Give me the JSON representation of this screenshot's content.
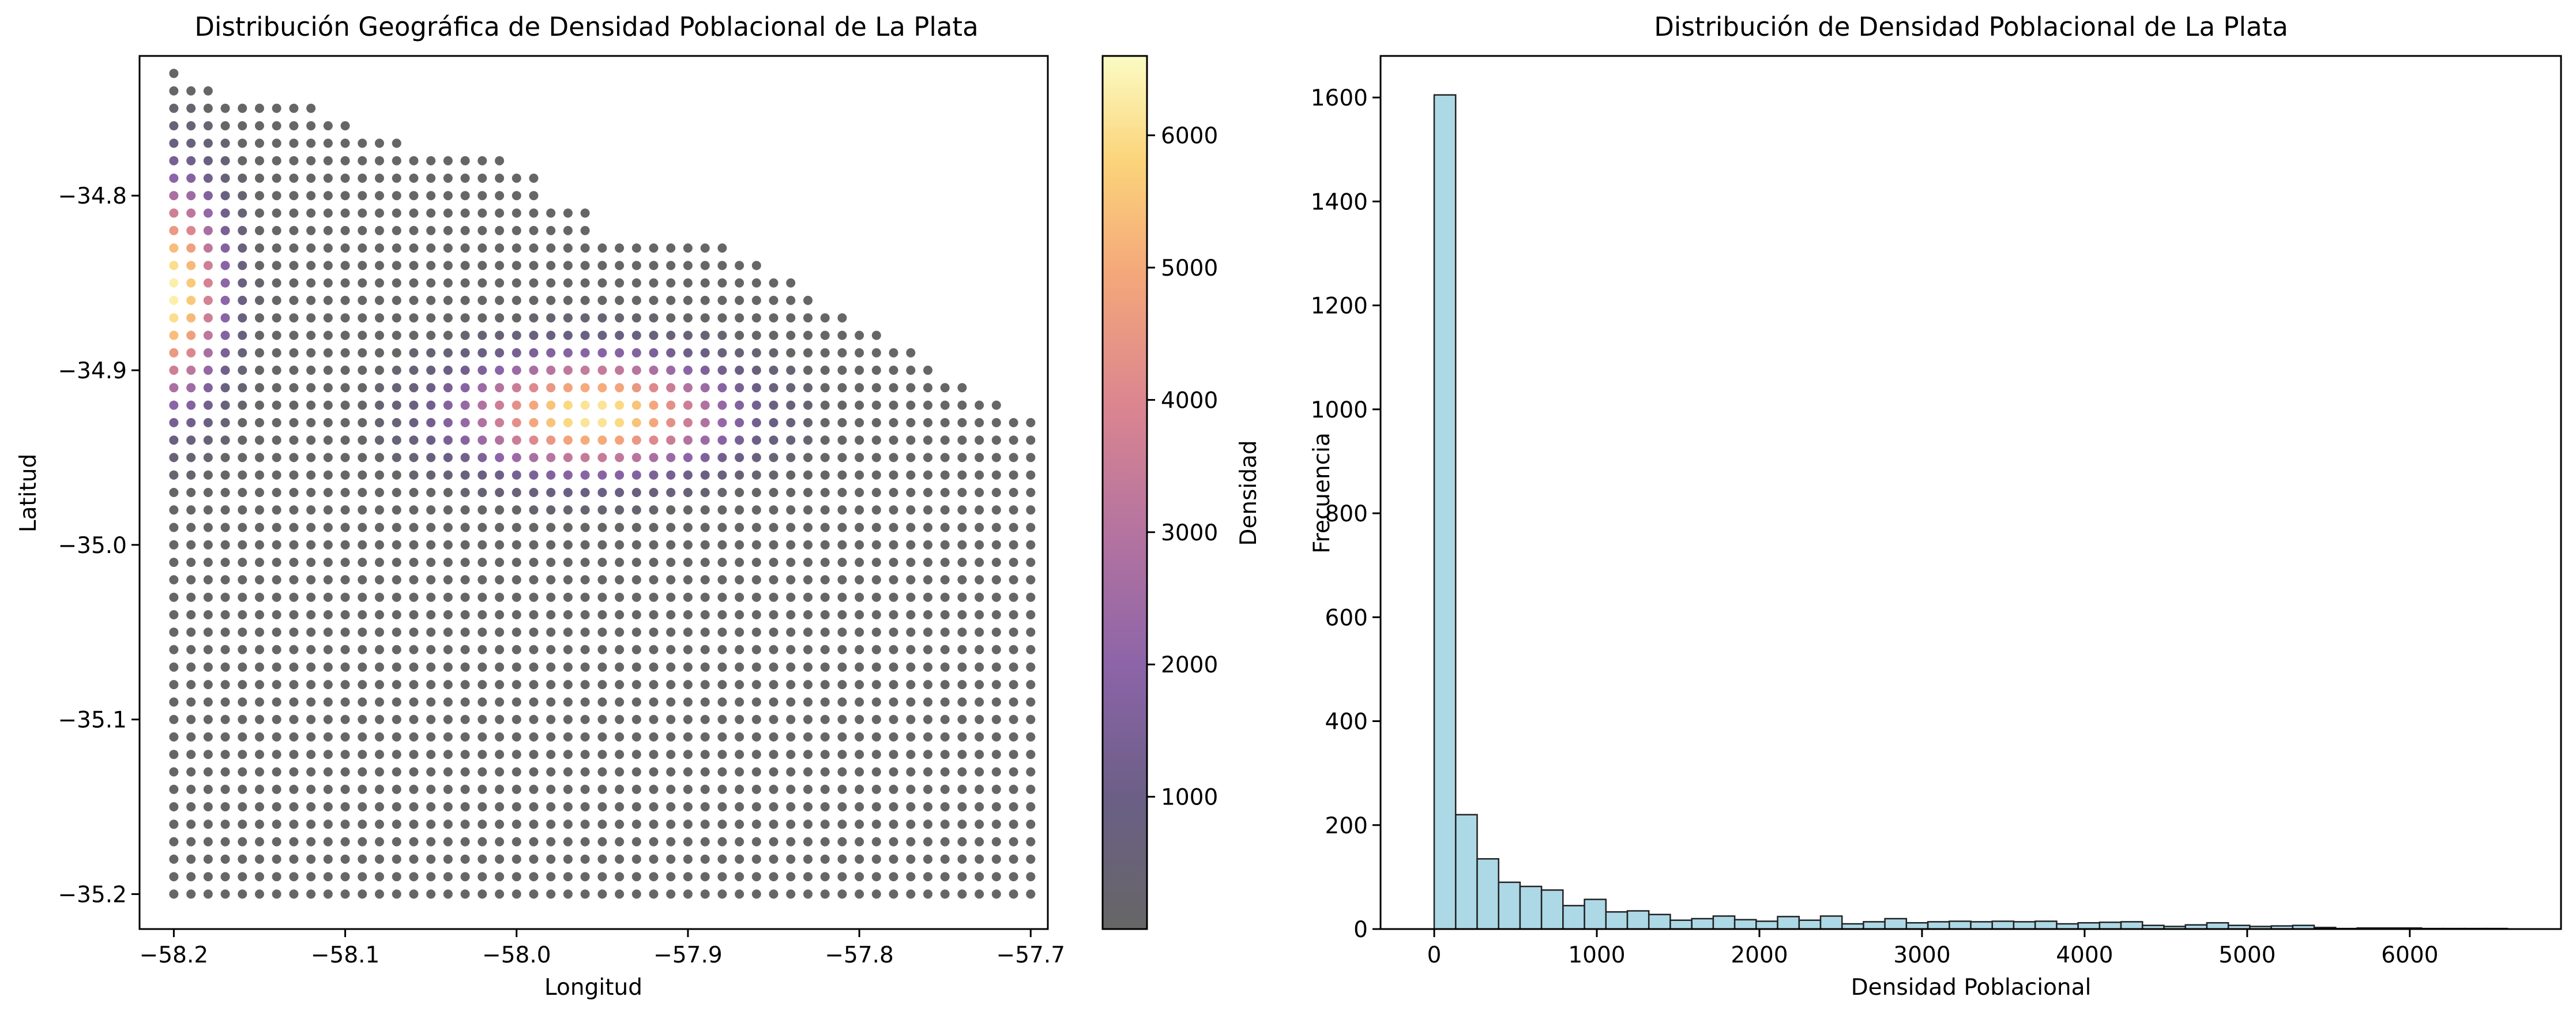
{
  "chart_data": [
    {
      "type": "scatter",
      "title": "Distribución Geográfica de Densidad Poblacional de La Plata",
      "xlabel": "Longitud",
      "ylabel": "Latitud",
      "xlim": [
        -58.22,
        -57.69
      ],
      "ylim": [
        -35.22,
        -34.72
      ],
      "xticks": [
        -58.2,
        -58.1,
        -58.0,
        -57.9,
        -57.8,
        -57.7
      ],
      "xtick_labels": [
        "−58.2",
        "−58.1",
        "−58.0",
        "−57.9",
        "−57.8",
        "−57.7"
      ],
      "yticks": [
        -34.8,
        -34.9,
        -35.0,
        -35.1,
        -35.2
      ],
      "ytick_labels": [
        "−34.8",
        "−34.9",
        "−35.0",
        "−35.1",
        "−35.2"
      ],
      "grid": false,
      "colormap": "inferno",
      "point_color_low": "#000004",
      "point_alpha": 0.6,
      "grid_spacing_deg": 0.01,
      "x_range": [
        -58.2,
        -57.7
      ],
      "y_range": [
        -35.2,
        -34.73
      ],
      "hotspots": [
        {
          "lon": -58.2,
          "lat": -34.855,
          "peak_density": 6400,
          "spread_lon": 0.028,
          "spread_lat": 0.06
        },
        {
          "lon": -57.955,
          "lat": -34.925,
          "peak_density": 6300,
          "spread_lon": 0.075,
          "spread_lat": 0.032
        }
      ],
      "colorbar": {
        "label": "Densidad",
        "range": [
          0,
          6600
        ],
        "ticks": [
          1000,
          2000,
          3000,
          4000,
          5000,
          6000
        ],
        "tick_labels": [
          "1000",
          "2000",
          "3000",
          "4000",
          "5000",
          "6000"
        ]
      }
    },
    {
      "type": "bar",
      "title": "Distribución de Densidad Poblacional de La Plata",
      "xlabel": "Densidad Poblacional",
      "ylabel": "Frecuencia",
      "xlim": [
        -330,
        6930
      ],
      "ylim": [
        0,
        1680
      ],
      "xticks": [
        0,
        1000,
        2000,
        3000,
        4000,
        5000,
        6000
      ],
      "xtick_labels": [
        "0",
        "1000",
        "2000",
        "3000",
        "4000",
        "5000",
        "6000"
      ],
      "yticks": [
        0,
        200,
        400,
        600,
        800,
        1000,
        1200,
        1400,
        1600
      ],
      "ytick_labels": [
        "0",
        "200",
        "400",
        "600",
        "800",
        "1000",
        "1200",
        "1400",
        "1600"
      ],
      "bar_color": "#add8e6",
      "edge_color": "#222222",
      "bin_start": 0,
      "bin_width": 132,
      "values": [
        1605,
        220,
        135,
        90,
        82,
        75,
        45,
        57,
        33,
        35,
        28,
        17,
        20,
        25,
        18,
        15,
        24,
        17,
        25,
        10,
        14,
        20,
        12,
        14,
        15,
        14,
        15,
        14,
        15,
        10,
        12,
        13,
        14,
        7,
        5,
        8,
        12,
        7,
        5,
        6,
        7,
        3,
        1,
        2,
        2,
        2,
        1,
        1,
        1,
        1
      ]
    }
  ]
}
